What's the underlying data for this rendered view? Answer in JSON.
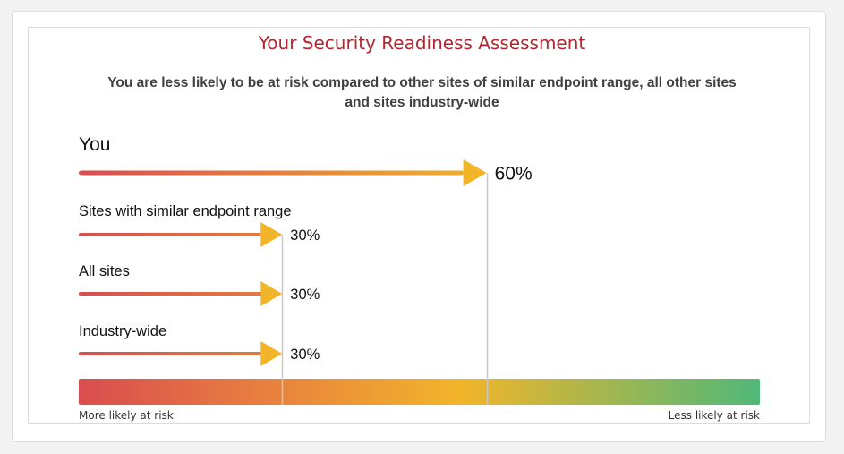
{
  "chart_data": {
    "type": "bar",
    "title": "Your Security Readiness Assessment",
    "subtitle": "You are less likely to be at risk compared to other sites of similar endpoint range, all other sites and sites industry-wide",
    "unit": "%",
    "xlim": [
      0,
      100
    ],
    "categories": [
      "You",
      "Sites with similar endpoint range",
      "All sites",
      "Industry-wide"
    ],
    "values": [
      60,
      30,
      30,
      30
    ],
    "value_labels": [
      "60%",
      "30%",
      "30%",
      "30%"
    ],
    "scale": {
      "left_label": "More likely at risk",
      "right_label": "Less likely at risk"
    }
  },
  "colors": {
    "title": "#b3262f",
    "arrow_start": "#d94d4f",
    "arrow_end": "#f2b52a",
    "scale_red": "#d94d4f",
    "scale_orange": "#e8813f",
    "scale_yellow": "#f2b52a",
    "scale_green": "#50b878",
    "marker_line": "#c8c8c8"
  }
}
